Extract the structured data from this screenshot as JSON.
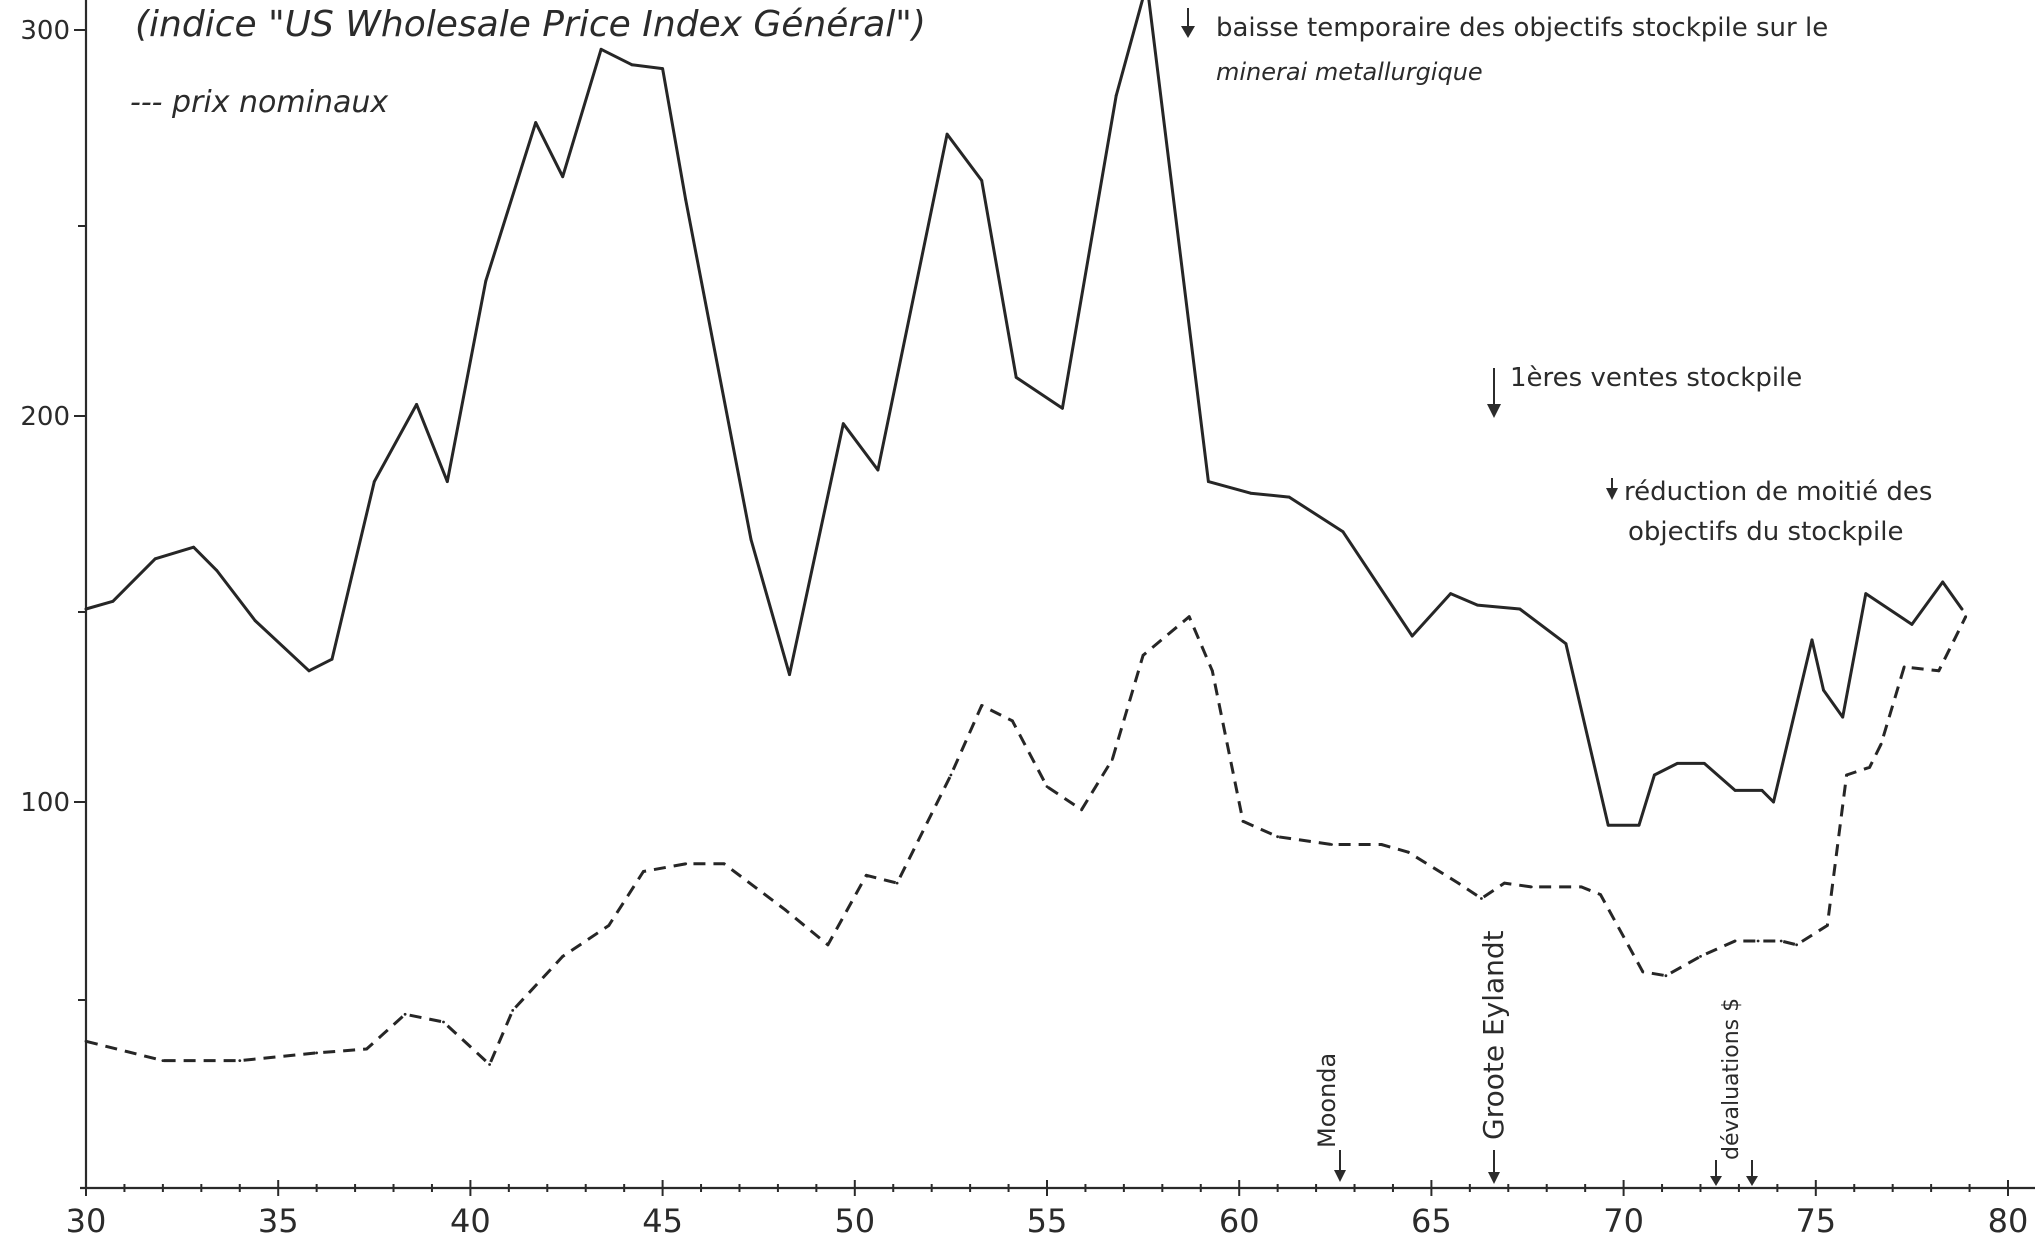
{
  "chart_data": {
    "type": "line",
    "x_axis": {
      "ticks": [
        "30",
        "35",
        "40",
        "45",
        "50",
        "55",
        "60",
        "65",
        "70",
        "75",
        "80"
      ],
      "range": [
        30,
        80
      ]
    },
    "y_axis": {
      "ticks": [
        "300",
        "200",
        "100"
      ],
      "range": [
        0,
        310
      ]
    },
    "legend": {
      "index_note": "(indice \"US Wholesale Price Index Général\")",
      "nominal_label": "--- prix nominaux"
    },
    "series": [
      {
        "style": "solid",
        "points": [
          [
            30,
            150
          ],
          [
            30.7,
            152
          ],
          [
            31.8,
            163
          ],
          [
            32.8,
            166
          ],
          [
            33.4,
            160
          ],
          [
            34.4,
            147
          ],
          [
            35.8,
            134
          ],
          [
            36.4,
            137
          ],
          [
            37.5,
            183
          ],
          [
            38.6,
            203
          ],
          [
            39.4,
            183
          ],
          [
            40.4,
            235
          ],
          [
            41.7,
            276
          ],
          [
            42.4,
            262
          ],
          [
            43.4,
            295
          ],
          [
            44.2,
            291
          ],
          [
            45,
            290
          ],
          [
            45.6,
            256
          ],
          [
            47.3,
            168
          ],
          [
            48.3,
            133
          ],
          [
            49.7,
            198
          ],
          [
            50.6,
            186
          ],
          [
            52.4,
            273
          ],
          [
            53.3,
            261
          ],
          [
            54.2,
            210
          ],
          [
            55.4,
            202
          ],
          [
            56.8,
            283
          ],
          [
            57.6,
            312
          ],
          [
            59.2,
            183
          ],
          [
            60.3,
            180
          ],
          [
            61.3,
            179
          ],
          [
            62.7,
            170
          ],
          [
            64.5,
            143
          ],
          [
            65.5,
            154
          ],
          [
            66.2,
            151
          ],
          [
            67.3,
            150
          ],
          [
            68.5,
            141
          ],
          [
            69.6,
            94
          ],
          [
            70.4,
            94
          ],
          [
            70.8,
            107
          ],
          [
            71.4,
            110
          ],
          [
            72.1,
            110
          ],
          [
            72.9,
            103
          ],
          [
            73.6,
            103
          ],
          [
            73.9,
            100
          ],
          [
            74.9,
            142
          ],
          [
            75.2,
            129
          ],
          [
            75.7,
            122
          ],
          [
            76.3,
            154
          ],
          [
            77.5,
            146
          ],
          [
            78.3,
            157
          ],
          [
            78.8,
            150
          ]
        ]
      },
      {
        "style": "dashed",
        "points": [
          [
            30,
            38
          ],
          [
            32,
            33
          ],
          [
            34,
            33
          ],
          [
            36,
            35
          ],
          [
            37.3,
            36
          ],
          [
            38.3,
            45
          ],
          [
            39.3,
            43
          ],
          [
            40.5,
            32
          ],
          [
            41.1,
            46
          ],
          [
            42.4,
            60
          ],
          [
            43.6,
            68
          ],
          [
            44.5,
            82
          ],
          [
            45.6,
            84
          ],
          [
            46.6,
            84
          ],
          [
            48.2,
            72
          ],
          [
            49.3,
            63
          ],
          [
            50.3,
            81
          ],
          [
            51.1,
            79
          ],
          [
            52.5,
            107
          ],
          [
            53.3,
            125
          ],
          [
            54.1,
            121
          ],
          [
            55,
            104
          ],
          [
            55.9,
            98
          ],
          [
            56.7,
            111
          ],
          [
            57.5,
            138
          ],
          [
            58.7,
            148
          ],
          [
            59.3,
            134
          ],
          [
            60.1,
            95
          ],
          [
            61,
            91
          ],
          [
            62.4,
            89
          ],
          [
            63.7,
            89
          ],
          [
            64.4,
            87
          ],
          [
            65.7,
            79
          ],
          [
            66.3,
            75
          ],
          [
            66.9,
            79
          ],
          [
            67.6,
            78
          ],
          [
            68.9,
            78
          ],
          [
            69.4,
            76
          ],
          [
            70.5,
            56
          ],
          [
            71.1,
            55
          ],
          [
            72,
            60
          ],
          [
            72.9,
            64
          ],
          [
            73.5,
            64
          ],
          [
            74.1,
            64
          ],
          [
            74.5,
            63
          ],
          [
            75.3,
            68
          ],
          [
            75.8,
            107
          ],
          [
            76.4,
            109
          ],
          [
            76.7,
            115
          ],
          [
            77.3,
            135
          ],
          [
            78.2,
            134
          ],
          [
            78.6,
            142
          ],
          [
            78.9,
            148
          ]
        ]
      }
    ],
    "annotations": {
      "baisse": "baisse temporaire des objectifs stockpile sur le",
      "baisse_line2": "minerai metallurgique",
      "ventes": "1ères ventes stockpile",
      "reduction": "réduction de moitié des",
      "reduction_line2": "objectifs du stockpile",
      "moonda": "Moonda",
      "groote": "Groote Eylandt",
      "devaluations": "dévaluations $"
    },
    "grid": false
  }
}
